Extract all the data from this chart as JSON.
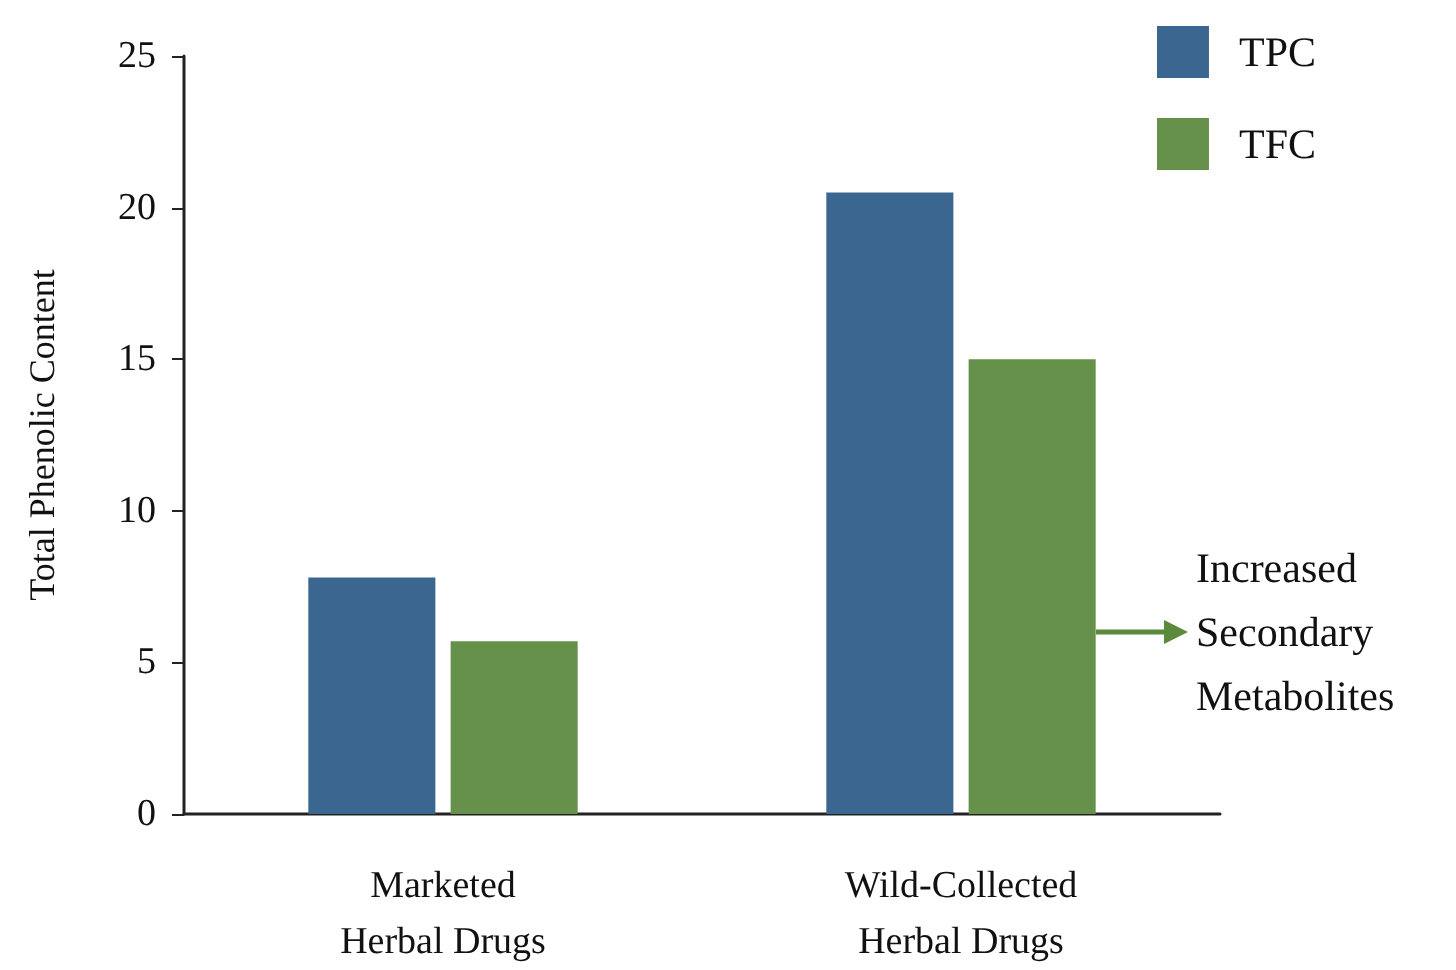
{
  "chart_data": {
    "type": "bar",
    "ylabel": "Total Phenolic Content",
    "categories": [
      "Marketed\nHerbal Drugs",
      "Wild-Collected\nHerbal Drugs"
    ],
    "series": [
      {
        "name": "TPC",
        "color": "#3a668f",
        "values": [
          7.8,
          20.5
        ]
      },
      {
        "name": "TFC",
        "color": "#66914a",
        "values": [
          5.7,
          15.0
        ]
      }
    ],
    "ylim": [
      0,
      25
    ],
    "yticks": [
      0,
      5,
      10,
      15,
      20,
      25
    ],
    "grid": false,
    "legend": "top right",
    "annotations": [
      "Increased\nSecondary\nMetabolites"
    ]
  }
}
